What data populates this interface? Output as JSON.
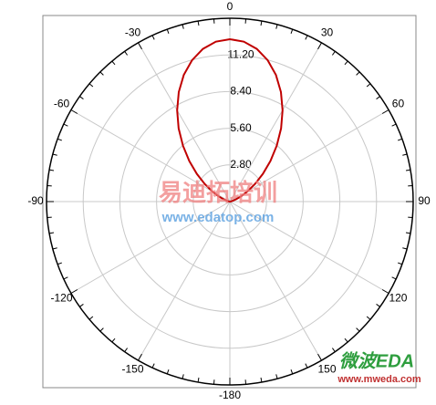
{
  "chart_data": {
    "type": "polar",
    "x": [
      -90,
      -85,
      -80,
      -75,
      -70,
      -65,
      -60,
      -55,
      -50,
      -45,
      -40,
      -35,
      -30,
      -25,
      -20,
      -15,
      -10,
      -5,
      0,
      5,
      10,
      15,
      20,
      25,
      30,
      35,
      40,
      45,
      50,
      55,
      60,
      65,
      70,
      75,
      80,
      85,
      90
    ],
    "series": [
      {
        "color": "#c00000",
        "values": [
          0,
          0.01,
          0.06,
          0.21,
          0.5,
          0.94,
          1.55,
          2.34,
          3.29,
          4.38,
          5.57,
          6.82,
          8.05,
          9.23,
          10.29,
          11.17,
          11.84,
          12.26,
          12.4,
          12.26,
          11.84,
          11.17,
          10.29,
          9.23,
          8.05,
          6.82,
          5.57,
          4.38,
          3.29,
          2.34,
          1.55,
          0.94,
          0.5,
          0.21,
          0.06,
          0.01,
          0
        ]
      }
    ],
    "xticks": [
      0,
      30,
      60,
      90,
      120,
      150,
      -180,
      -150,
      -120,
      -90,
      -60,
      -30
    ],
    "ylim": [
      0,
      14
    ],
    "yticks": [
      {
        "value": 2.8,
        "label": "2.80"
      },
      {
        "value": 5.6,
        "label": "5.60"
      },
      {
        "value": 8.4,
        "label": "8.40"
      },
      {
        "value": 11.2,
        "label": "11.20"
      }
    ],
    "grid": true,
    "watermarks": [
      "易迪拓培训",
      "www.edatop.com",
      "微波EDA",
      "www.mweda.com"
    ]
  }
}
